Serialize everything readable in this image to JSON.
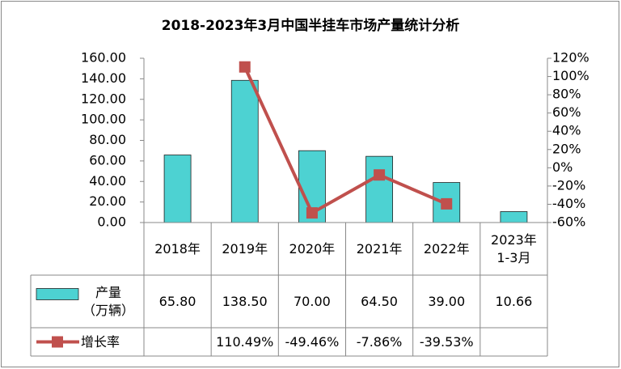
{
  "chart_data": {
    "type": "bar-line",
    "title": "2018-2023年3月中国半挂车市场产量统计分析",
    "categories": [
      "2018年",
      "2019年",
      "2020年",
      "2021年",
      "2022年",
      "2023年\n1-3月"
    ],
    "series": [
      {
        "name": "产量\n（万辆）",
        "type": "bar",
        "color": "#4dd2d2",
        "values": [
          65.8,
          138.5,
          70,
          64.5,
          39,
          10.66
        ],
        "value_labels": [
          "65.80",
          "138.50",
          "70.00",
          "64.50",
          "39.00",
          "10.66"
        ]
      },
      {
        "name": "增长率",
        "type": "line",
        "axis": "y2",
        "color": "#c0504d",
        "values": [
          null,
          110.49,
          -49.46,
          -7.86,
          -39.53,
          null
        ],
        "value_labels": [
          null,
          "110.49%",
          "-49.46%",
          "-7.86%",
          "-39.53%",
          null
        ]
      }
    ],
    "ylim": [
      0,
      160
    ],
    "yticks": [
      {
        "value": 0,
        "label": "0.00"
      },
      {
        "value": 20,
        "label": "20.00"
      },
      {
        "value": 40,
        "label": "40.00"
      },
      {
        "value": 60,
        "label": "60.00"
      },
      {
        "value": 80,
        "label": "80.00"
      },
      {
        "value": 100,
        "label": "100.00"
      },
      {
        "value": 120,
        "label": "120.00"
      },
      {
        "value": 140,
        "label": "140.00"
      },
      {
        "value": 160,
        "label": "160.00"
      }
    ],
    "y2lim": [
      -60,
      120
    ],
    "y2ticks": [
      {
        "value": -60,
        "label": "-60%"
      },
      {
        "value": -40,
        "label": "-40%"
      },
      {
        "value": -20,
        "label": "-20%"
      },
      {
        "value": 0,
        "label": "0%"
      },
      {
        "value": 20,
        "label": "20%"
      },
      {
        "value": 40,
        "label": "40%"
      },
      {
        "value": 60,
        "label": "60%"
      },
      {
        "value": 80,
        "label": "80%"
      },
      {
        "value": 100,
        "label": "100%"
      },
      {
        "value": 120,
        "label": "120%"
      }
    ]
  }
}
